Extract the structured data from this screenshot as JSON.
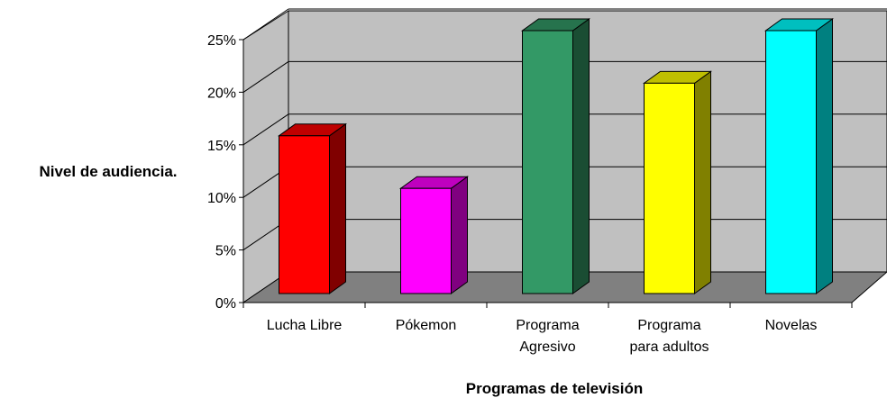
{
  "chart_data": {
    "type": "bar3d",
    "x_label": "Programas de televisión",
    "y_label": "Nivel de audiencia.",
    "categories": [
      "Lucha Libre",
      "Pókemon",
      "Programa\nAgresivo",
      "Programa\npara adultos",
      "Novelas"
    ],
    "values": [
      15,
      10,
      25,
      20,
      25
    ],
    "colors": [
      "#ff0000",
      "#ff00ff",
      "#339966",
      "#ffff00",
      "#00ffff"
    ],
    "ylim": [
      0,
      25
    ],
    "yticks": [
      {
        "value": 0,
        "label": "0%"
      },
      {
        "value": 5,
        "label": "5%"
      },
      {
        "value": 10,
        "label": "10%"
      },
      {
        "value": 15,
        "label": "15%"
      },
      {
        "value": 20,
        "label": "20%"
      },
      {
        "value": 25,
        "label": "25%"
      }
    ],
    "grid": true
  }
}
